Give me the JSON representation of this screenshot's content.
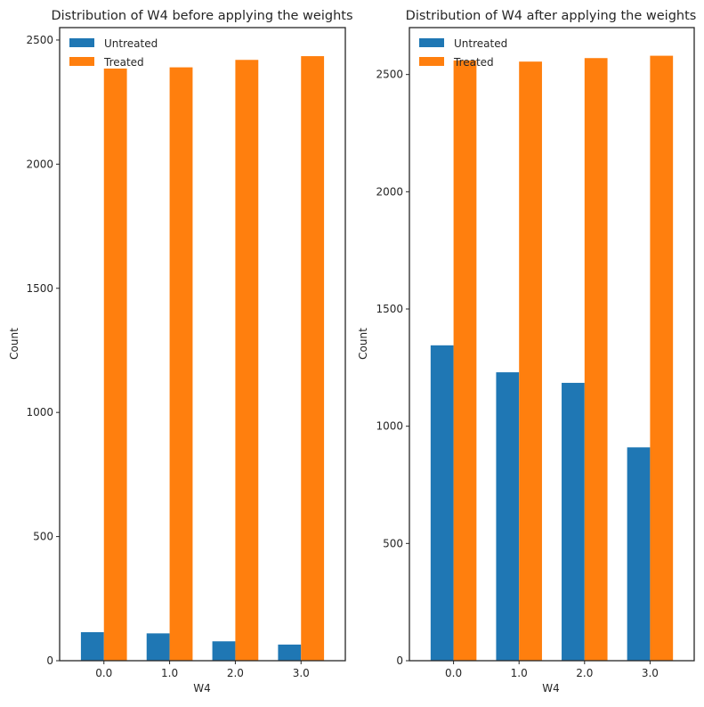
{
  "colors": {
    "untreated": "#1f77b4",
    "treated": "#ff7f0e"
  },
  "chart_data": [
    {
      "type": "bar",
      "title": "Distribution of W4 before applying the weights",
      "xlabel": "W4",
      "ylabel": "Count",
      "categories": [
        "0.0",
        "1.0",
        "2.0",
        "3.0"
      ],
      "yticks": [
        "0",
        "500",
        "1000",
        "1500",
        "2000",
        "2500"
      ],
      "ylim": [
        0,
        2550
      ],
      "legend_position": "top-left",
      "grid": false,
      "series": [
        {
          "name": "Untreated",
          "values": [
            115,
            110,
            78,
            65
          ]
        },
        {
          "name": "Treated",
          "values": [
            2385,
            2390,
            2420,
            2435
          ]
        }
      ]
    },
    {
      "type": "bar",
      "title": "Distribution of W4 after applying the weights",
      "xlabel": "W4",
      "ylabel": "Count",
      "categories": [
        "0.0",
        "1.0",
        "2.0",
        "3.0"
      ],
      "yticks": [
        "0",
        "500",
        "1000",
        "1500",
        "2000",
        "2500"
      ],
      "ylim": [
        0,
        2700
      ],
      "legend_position": "top-left",
      "grid": false,
      "series": [
        {
          "name": "Untreated",
          "values": [
            1345,
            1230,
            1185,
            910
          ]
        },
        {
          "name": "Treated",
          "values": [
            2560,
            2555,
            2570,
            2580
          ]
        }
      ]
    }
  ]
}
